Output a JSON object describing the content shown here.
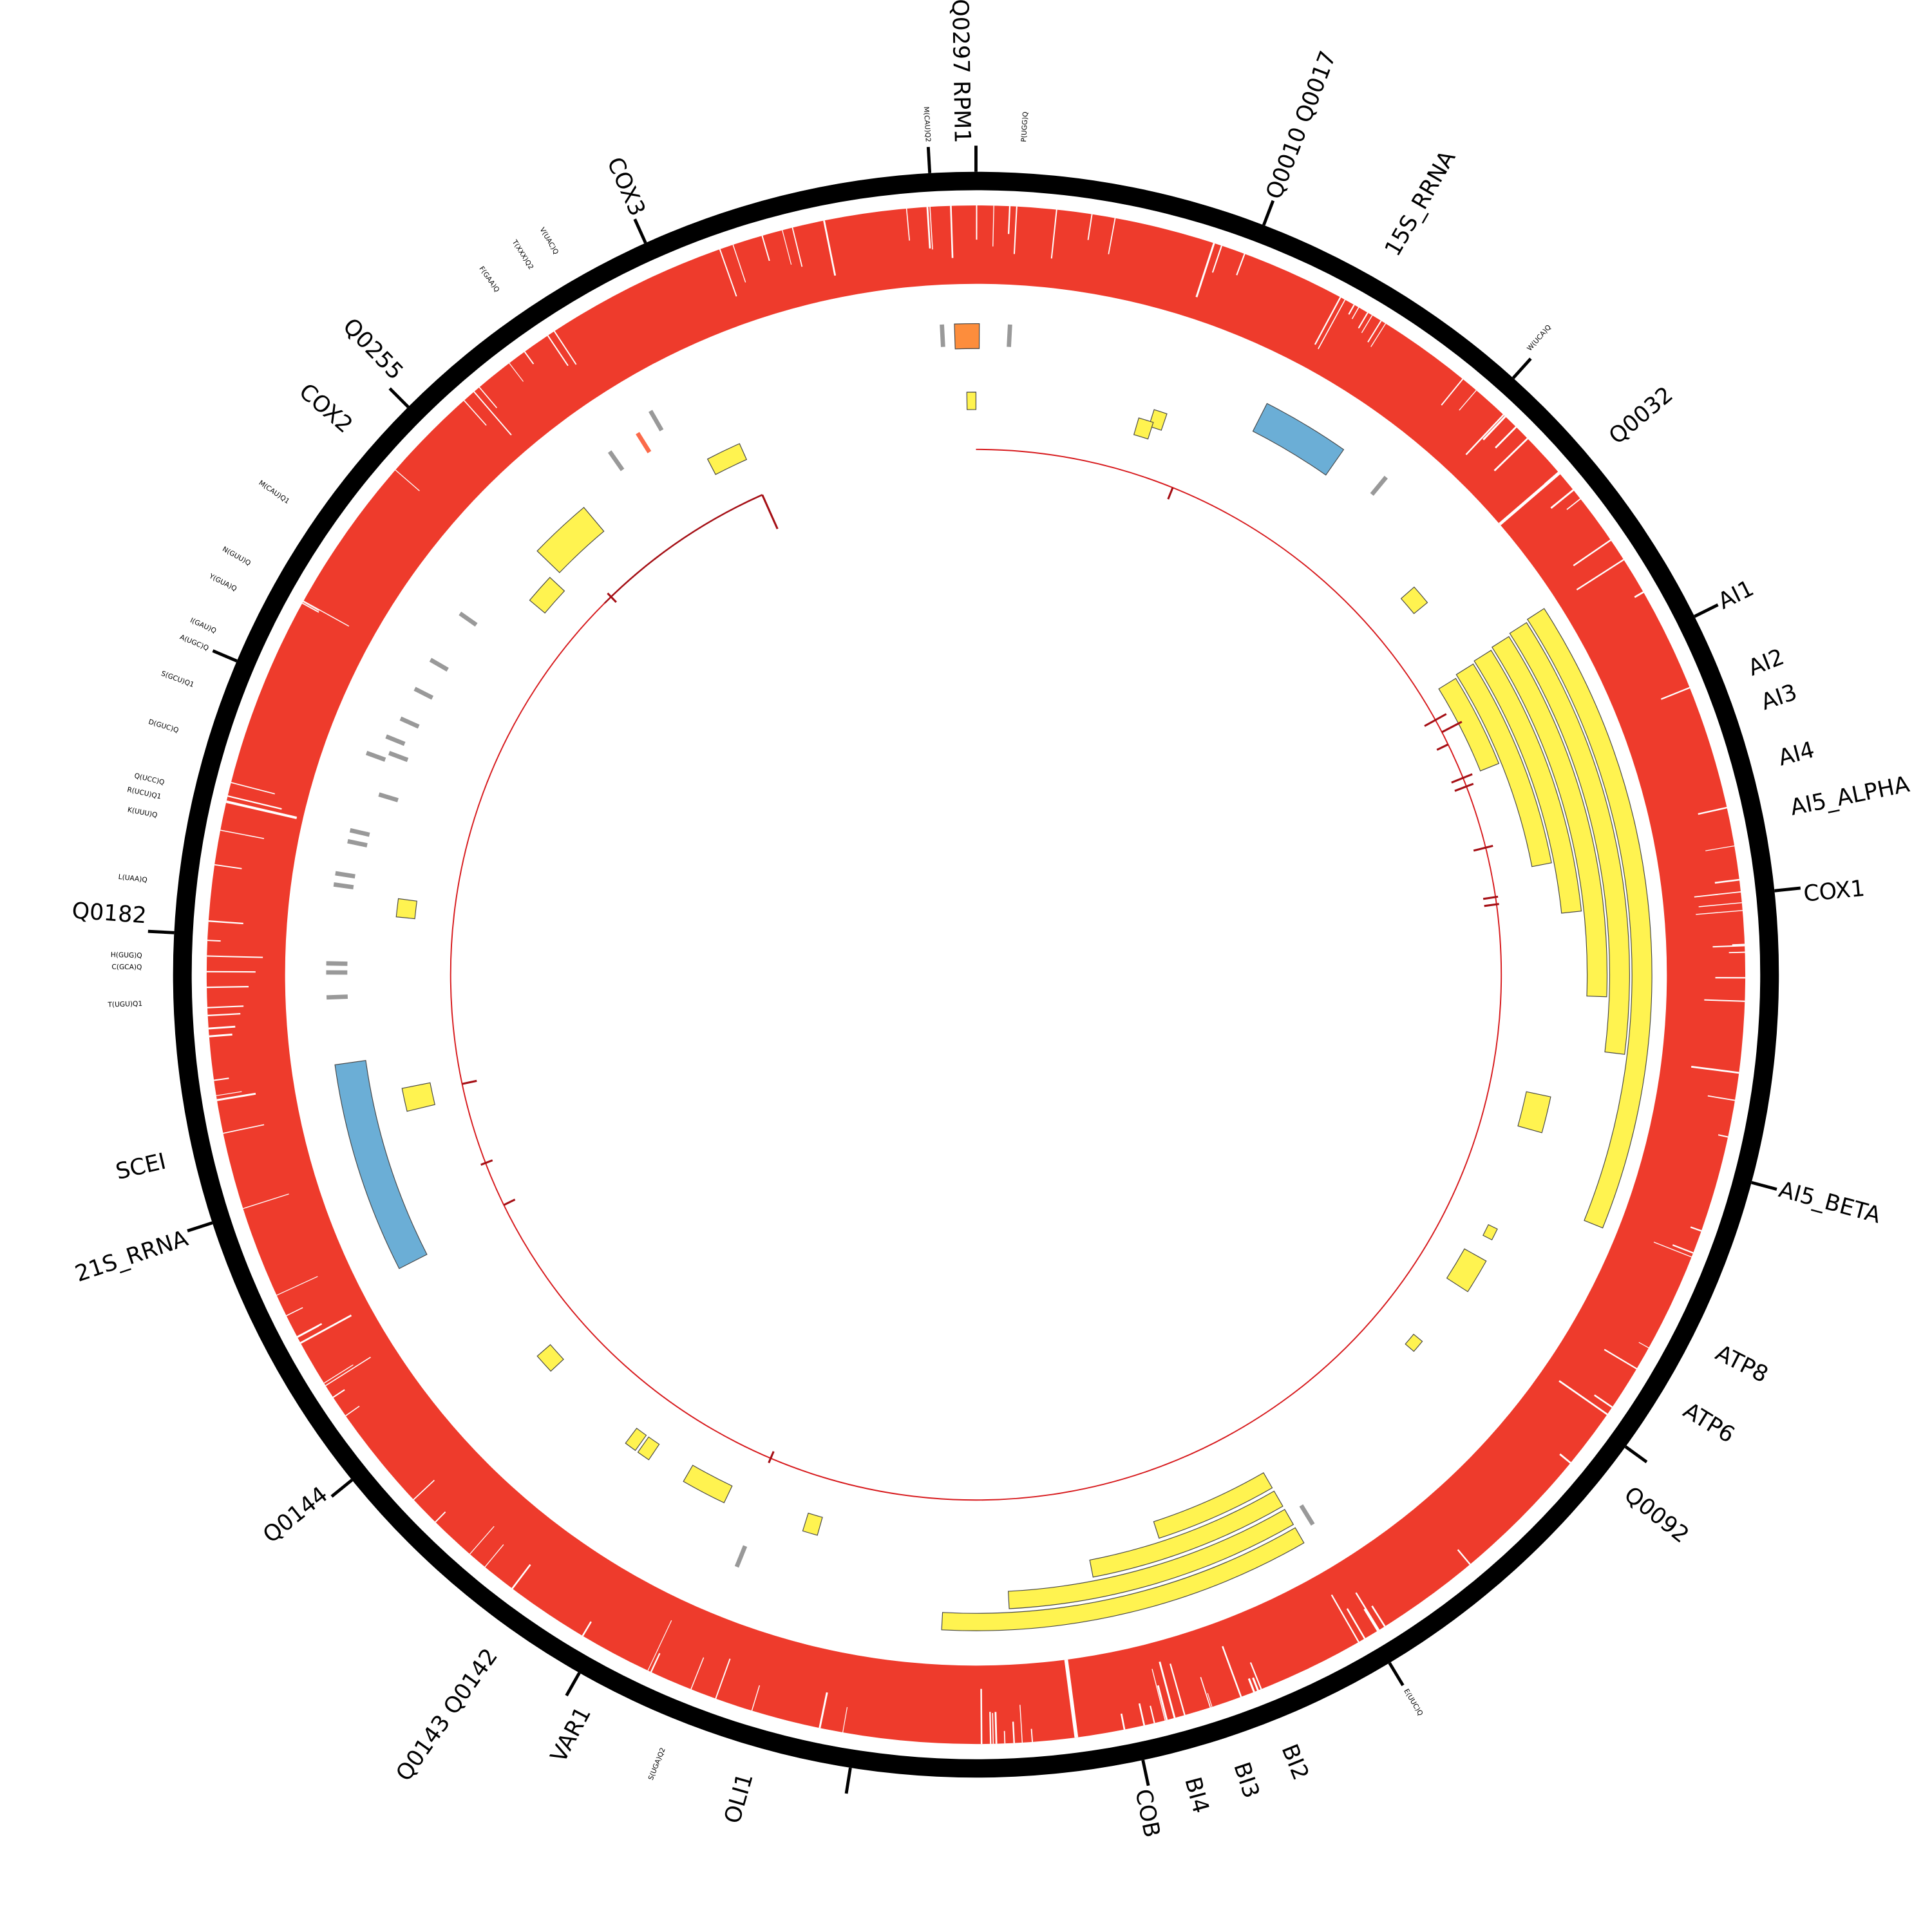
{
  "labels": {
    "major": [
      "Q0297 RPM1",
      "Q0010 Q0017",
      "15S_RRNA",
      "Q0032",
      "AI1",
      "AI2",
      "AI3",
      "AI4",
      "AI5_ALPHA",
      "COX1",
      "AI5_BETA",
      "ATP8",
      "ATP6",
      "Q0092",
      "BI2",
      "BI3",
      "BI4",
      "COB",
      "OLI1",
      "VAR1",
      "Q0143 Q0142",
      "Q0144",
      "21S_RRNA",
      "SCEI",
      "Q0182",
      "COX2",
      "Q0255",
      "COX3"
    ],
    "minor": [
      "M(CAU)Q2",
      "P(UGG)Q",
      "W(UCA)Q",
      "E(UUC)Q",
      "S(UGA)Q2",
      "T(UGU)Q1",
      "C(GCA)Q",
      "H(GUG)Q",
      "L(UAA)Q",
      "K(UUU)Q",
      "R(UCU)Q1",
      "Q(UCC)Q",
      "D(GUC)Q",
      "S(GCU)Q1",
      "A(UGC)Q",
      "I(GAU)Q",
      "Y(GUA)Q",
      "N(GUU)Q",
      "M(CAU)Q1",
      "F(GAA)Q",
      "T(XXX)Q2",
      "V(UAC)Q"
    ]
  }
}
